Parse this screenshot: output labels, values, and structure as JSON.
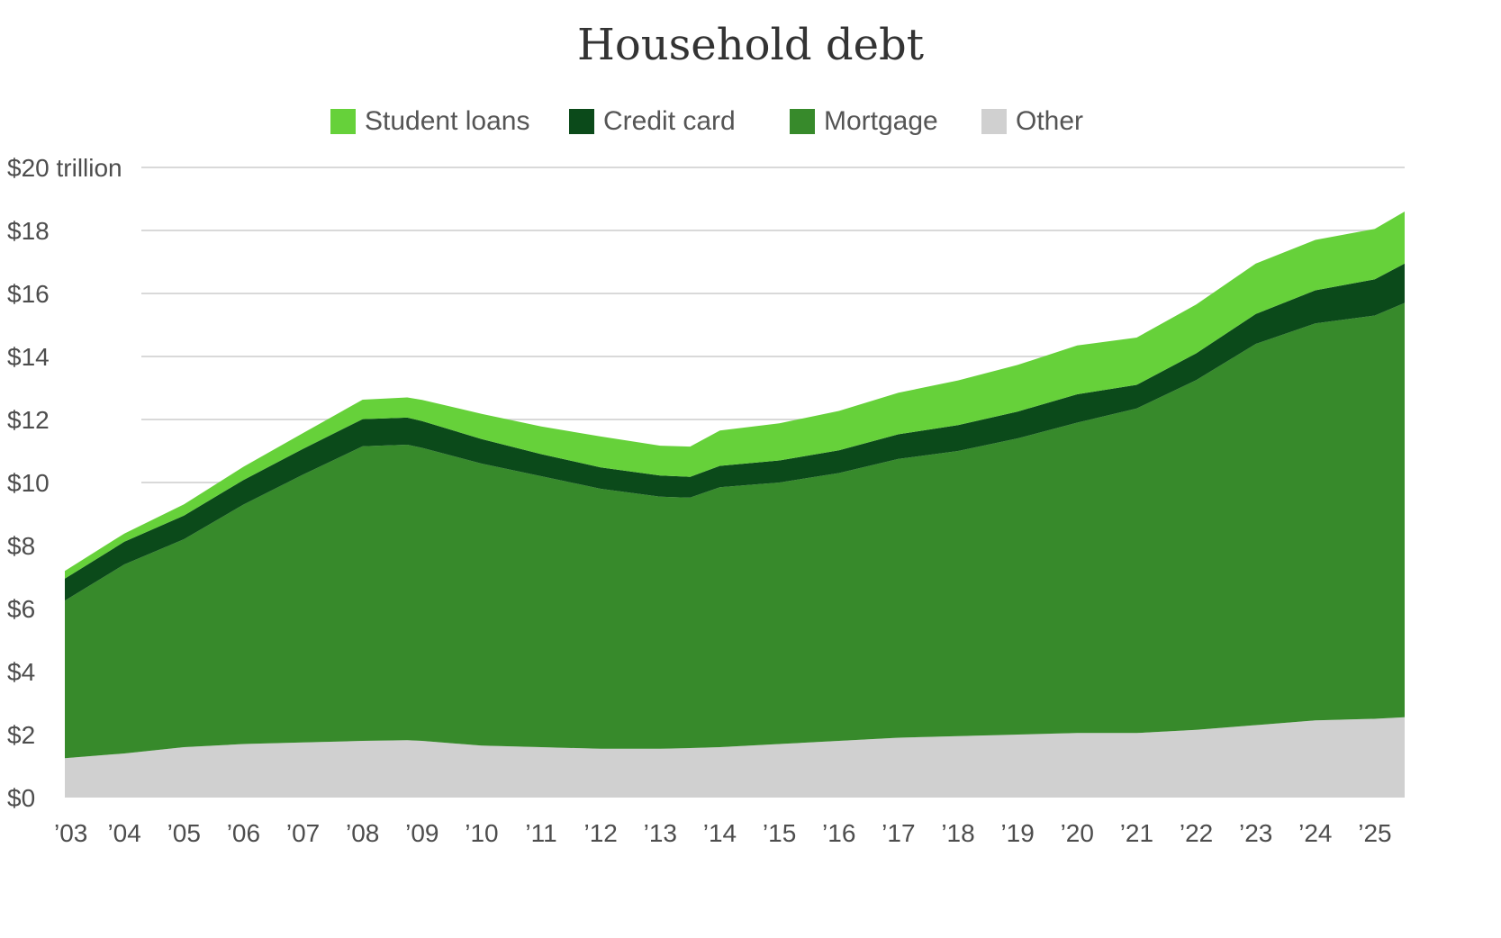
{
  "chart_data": {
    "type": "area",
    "stacked": true,
    "title": "Household debt",
    "legend": [
      {
        "name": "Student loans",
        "color": "#66d13a"
      },
      {
        "name": "Credit card",
        "color": "#0b4a1a"
      },
      {
        "name": "Mortgage",
        "color": "#378a2b"
      },
      {
        "name": "Other",
        "color": "#d0d0d0"
      }
    ],
    "y_ticks": [
      "$0",
      "$2",
      "$4",
      "$6",
      "$8",
      "$10",
      "$12",
      "$14",
      "$16",
      "$18",
      "$20 trillion"
    ],
    "ylim": [
      0,
      20
    ],
    "x_ticks": [
      "’03",
      "’04",
      "’05",
      "’06",
      "’07",
      "’08",
      "’09",
      "’10",
      "’11",
      "’12",
      "’13",
      "’14",
      "’15",
      "’16",
      "’17",
      "’18",
      "’19",
      "’20",
      "’21",
      "’22",
      "’23",
      "’24",
      "’25"
    ],
    "x": [
      2003.0,
      2004.0,
      2005.0,
      2006.0,
      2007.0,
      2008.0,
      2008.75,
      2009.0,
      2010.0,
      2011.0,
      2012.0,
      2013.0,
      2013.5,
      2014.0,
      2015.0,
      2016.0,
      2017.0,
      2018.0,
      2019.0,
      2020.0,
      2021.0,
      2022.0,
      2023.0,
      2024.0,
      2025.0,
      2025.5
    ],
    "series": [
      {
        "name": "Other",
        "color": "#d0d0d0",
        "values": [
          1.25,
          1.4,
          1.6,
          1.7,
          1.75,
          1.8,
          1.82,
          1.8,
          1.65,
          1.6,
          1.55,
          1.55,
          1.57,
          1.6,
          1.7,
          1.8,
          1.9,
          1.95,
          2.0,
          2.05,
          2.05,
          2.15,
          2.3,
          2.45,
          2.5,
          2.55
        ]
      },
      {
        "name": "Mortgage",
        "color": "#378a2b",
        "values": [
          5.0,
          6.0,
          6.6,
          7.6,
          8.5,
          9.35,
          9.38,
          9.3,
          8.95,
          8.6,
          8.25,
          8.0,
          7.95,
          8.25,
          8.3,
          8.5,
          8.85,
          9.05,
          9.4,
          9.85,
          10.3,
          11.1,
          12.1,
          12.6,
          12.8,
          13.15
        ]
      },
      {
        "name": "Credit card",
        "color": "#0b4a1a",
        "values": [
          0.7,
          0.72,
          0.75,
          0.78,
          0.82,
          0.86,
          0.86,
          0.85,
          0.78,
          0.7,
          0.68,
          0.67,
          0.66,
          0.68,
          0.7,
          0.72,
          0.78,
          0.82,
          0.85,
          0.9,
          0.75,
          0.85,
          0.95,
          1.05,
          1.15,
          1.25
        ]
      },
      {
        "name": "Student loans",
        "color": "#66d13a",
        "values": [
          0.24,
          0.26,
          0.36,
          0.42,
          0.5,
          0.62,
          0.64,
          0.67,
          0.8,
          0.88,
          0.98,
          0.95,
          0.96,
          1.12,
          1.18,
          1.25,
          1.32,
          1.42,
          1.48,
          1.55,
          1.5,
          1.55,
          1.6,
          1.6,
          1.6,
          1.65
        ]
      }
    ]
  }
}
